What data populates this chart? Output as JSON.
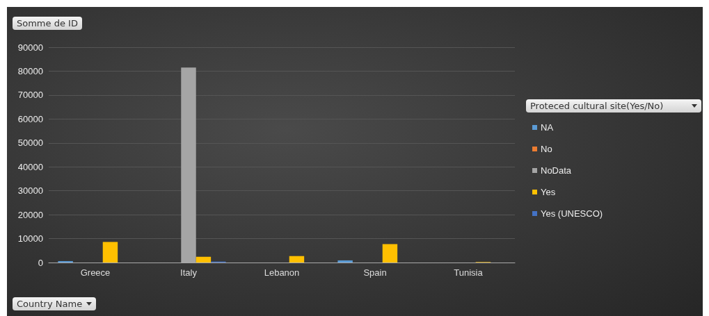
{
  "chart_data": {
    "type": "bar",
    "ylabel": "Somme de ID",
    "xlabel": "Country Name",
    "legend_title": "Proteced cultural site(Yes/No)",
    "categories": [
      "Greece",
      "Italy",
      "Lebanon",
      "Spain",
      "Tunisia"
    ],
    "series": [
      {
        "name": "NA",
        "color": "#5b9bd5",
        "values": [
          600,
          null,
          null,
          900,
          null
        ]
      },
      {
        "name": "No",
        "color": "#ed7d31",
        "values": [
          null,
          null,
          null,
          null,
          null
        ]
      },
      {
        "name": "NoData",
        "color": "#a5a5a5",
        "values": [
          null,
          81500,
          null,
          null,
          null
        ]
      },
      {
        "name": "Yes",
        "color": "#ffc000",
        "values": [
          8600,
          2400,
          2700,
          7700,
          200
        ]
      },
      {
        "name": "Yes (UNESCO)",
        "color": "#4472c4",
        "values": [
          null,
          400,
          null,
          null,
          null
        ]
      }
    ],
    "ylim": [
      0,
      90000
    ],
    "yticks": [
      0,
      10000,
      20000,
      30000,
      40000,
      50000,
      60000,
      70000,
      80000,
      90000
    ],
    "grid": "y",
    "legend": "right"
  }
}
